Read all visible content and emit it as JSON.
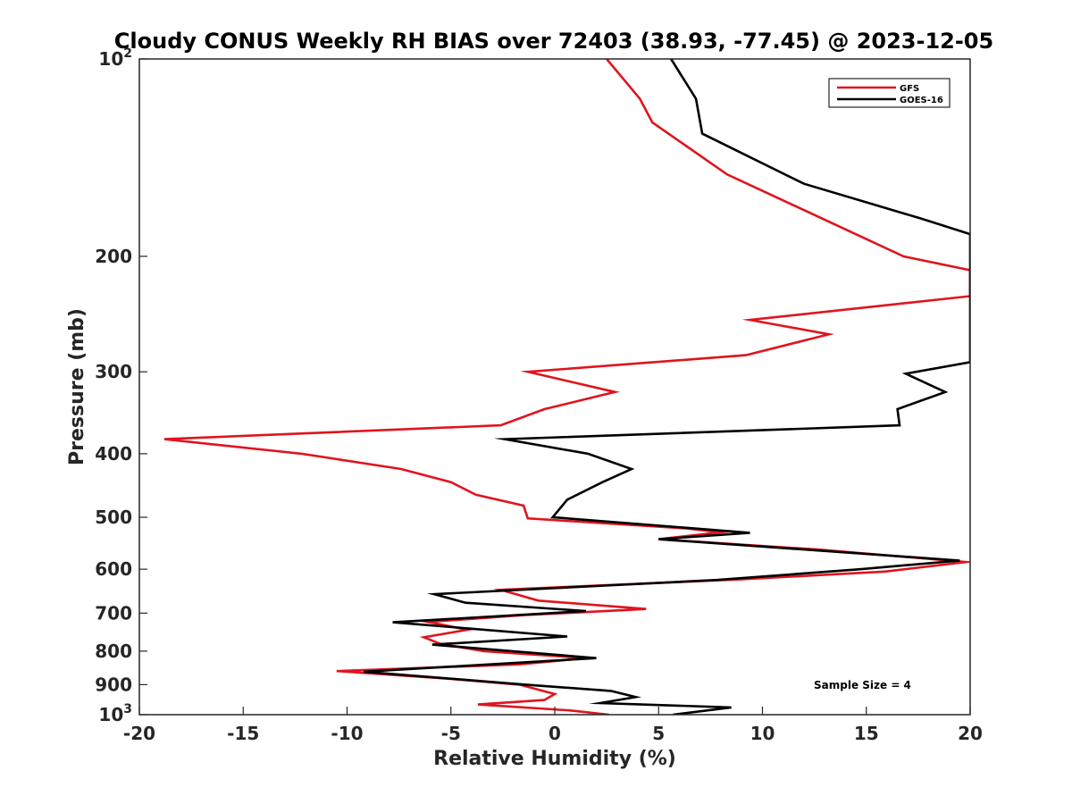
{
  "chart_data": {
    "type": "line",
    "title": "Cloudy CONUS Weekly RH BIAS over 72403 (38.93, -77.45) @ 2023-12-05",
    "xlabel": "Relative Humidity (%)",
    "ylabel": "Pressure (mb)",
    "xlim": [
      -20,
      20
    ],
    "ylim": [
      100,
      1000
    ],
    "y_scale": "log",
    "y_reversed": true,
    "grid": false,
    "legend_position": "top-right",
    "x_ticks": [
      -20,
      -15,
      -10,
      -5,
      0,
      5,
      10,
      15,
      20
    ],
    "x_tick_labels": [
      "-20",
      "-15",
      "-10",
      "-5",
      "0",
      "5",
      "10",
      "15",
      "20"
    ],
    "y_ticks": [
      100,
      200,
      300,
      400,
      500,
      600,
      700,
      800,
      900,
      1000
    ],
    "y_tick_labels": [
      {
        "base": "10",
        "exp": "2"
      },
      {
        "base": "200",
        "exp": ""
      },
      {
        "base": "300",
        "exp": ""
      },
      {
        "base": "400",
        "exp": ""
      },
      {
        "base": "500",
        "exp": ""
      },
      {
        "base": "600",
        "exp": ""
      },
      {
        "base": "700",
        "exp": ""
      },
      {
        "base": "800",
        "exp": ""
      },
      {
        "base": "900",
        "exp": ""
      },
      {
        "base": "10",
        "exp": "3"
      }
    ],
    "annotation": "Sample Size = 4",
    "series": [
      {
        "name": "GFS",
        "color": "#e0141e",
        "points": [
          [
            2.5,
            100
          ],
          [
            4.1,
            115
          ],
          [
            4.7,
            125
          ],
          [
            8.3,
            150
          ],
          [
            16.8,
            200
          ],
          [
            20.0,
            210
          ],
          [
            20.0,
            230
          ],
          [
            9.4,
            250
          ],
          [
            13.2,
            263
          ],
          [
            9.2,
            283
          ],
          [
            -1.3,
            300
          ],
          [
            2.9,
            322
          ],
          [
            -0.5,
            342
          ],
          [
            -2.6,
            362
          ],
          [
            -18.8,
            380
          ],
          [
            -12.2,
            400
          ],
          [
            -7.4,
            422
          ],
          [
            -5.0,
            442
          ],
          [
            -3.8,
            462
          ],
          [
            -1.5,
            480
          ],
          [
            -1.3,
            502
          ],
          [
            6.3,
            520
          ],
          [
            8.0,
            527
          ],
          [
            5.0,
            540
          ],
          [
            12.7,
            560
          ],
          [
            19.8,
            585
          ],
          [
            15.9,
            605
          ],
          [
            8.9,
            622
          ],
          [
            -2.6,
            645
          ],
          [
            -0.8,
            670
          ],
          [
            4.4,
            690
          ],
          [
            -1.5,
            705
          ],
          [
            -6.1,
            722
          ],
          [
            -4.2,
            742
          ],
          [
            -6.3,
            762
          ],
          [
            -5.5,
            780
          ],
          [
            -3.4,
            800
          ],
          [
            1.5,
            820
          ],
          [
            -1.7,
            838
          ],
          [
            -10.5,
            858
          ],
          [
            -5.0,
            882
          ],
          [
            -1.7,
            900
          ],
          [
            0.0,
            930
          ],
          [
            -0.5,
            950
          ],
          [
            -3.7,
            965
          ],
          [
            0.7,
            985
          ],
          [
            2.6,
            1000
          ]
        ]
      },
      {
        "name": "GOES-16",
        "color": "#000000",
        "points": [
          [
            5.6,
            100
          ],
          [
            6.8,
            115
          ],
          [
            7.1,
            130
          ],
          [
            12.0,
            155
          ],
          [
            17.6,
            175
          ],
          [
            20.0,
            185
          ],
          [
            20.0,
            290
          ],
          [
            16.9,
            302
          ],
          [
            18.8,
            322
          ],
          [
            16.5,
            342
          ],
          [
            16.6,
            362
          ],
          [
            -2.4,
            380
          ],
          [
            1.6,
            400
          ],
          [
            3.7,
            422
          ],
          [
            2.3,
            442
          ],
          [
            0.6,
            470
          ],
          [
            -0.1,
            500
          ],
          [
            9.4,
            528
          ],
          [
            5.0,
            540
          ],
          [
            19.5,
            582
          ],
          [
            14.7,
            600
          ],
          [
            7.8,
            623
          ],
          [
            -5.8,
            655
          ],
          [
            -4.3,
            675
          ],
          [
            1.5,
            695
          ],
          [
            -7.8,
            723
          ],
          [
            0.6,
            760
          ],
          [
            -5.9,
            782
          ],
          [
            2.0,
            820
          ],
          [
            -9.2,
            860
          ],
          [
            -1.4,
            900
          ],
          [
            2.7,
            920
          ],
          [
            3.9,
            940
          ],
          [
            2.2,
            960
          ],
          [
            8.5,
            975
          ],
          [
            5.7,
            1000
          ]
        ]
      }
    ]
  }
}
